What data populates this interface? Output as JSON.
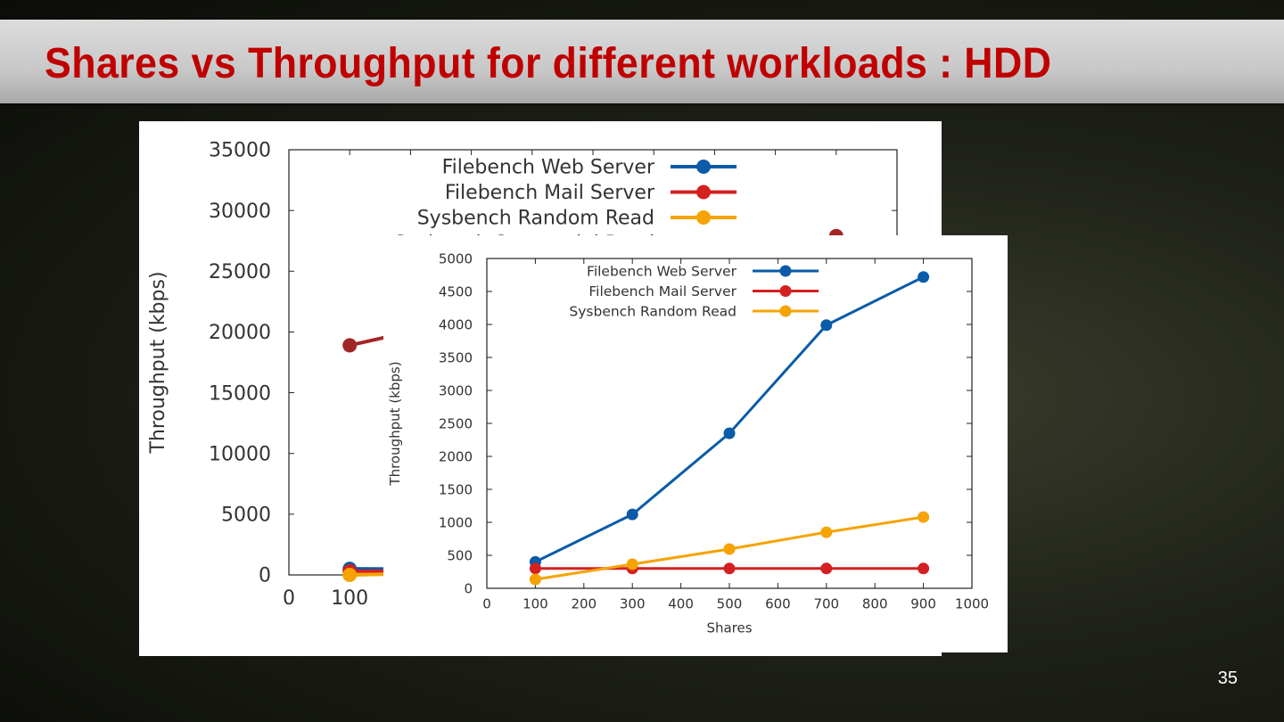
{
  "slide": {
    "title": "Shares vs Throughput for different workloads : HDD",
    "page_number": "35"
  },
  "chart_data": [
    {
      "type": "line",
      "ylabel": "Throughput (kbps)",
      "xlabel": "",
      "xlim": [
        0,
        1000
      ],
      "ylim": [
        0,
        35000
      ],
      "yticks": [
        "0",
        "5000",
        "10000",
        "15000",
        "20000",
        "25000",
        "30000",
        "35000"
      ],
      "xticks": [
        "0",
        "100"
      ],
      "legend_position": "top-center",
      "series": [
        {
          "name": "Filebench Web Server",
          "color": "#0a5ba8",
          "x": [
            100,
            300
          ],
          "y": [
            500,
            450
          ]
        },
        {
          "name": "Filebench Mail Server",
          "color": "#d42020",
          "x": [
            100,
            300
          ],
          "y": [
            300,
            300
          ]
        },
        {
          "name": "Sysbench Random Read",
          "color": "#f5a300",
          "x": [
            100,
            300
          ],
          "y": [
            0,
            200
          ]
        },
        {
          "name": "Sysbench Sequential Read",
          "color": "#a32626",
          "x": [
            100,
            900
          ],
          "y": [
            18900,
            27900
          ]
        }
      ]
    },
    {
      "type": "line",
      "ylabel": "Throughput (kbps)",
      "xlabel": "Shares",
      "xlim": [
        0,
        1000
      ],
      "ylim": [
        0,
        5000
      ],
      "yticks": [
        "0",
        "500",
        "1000",
        "1500",
        "2000",
        "2500",
        "3000",
        "3500",
        "4000",
        "4500",
        "5000"
      ],
      "xticks": [
        "0",
        "100",
        "200",
        "300",
        "400",
        "500",
        "600",
        "700",
        "800",
        "900",
        "1000"
      ],
      "legend_position": "top-left",
      "series": [
        {
          "name": "Filebench Web Server",
          "color": "#0a5ba8",
          "x": [
            100,
            300,
            500,
            700,
            900
          ],
          "y": [
            400,
            1120,
            2350,
            3990,
            4720
          ]
        },
        {
          "name": "Filebench Mail Server",
          "color": "#d42020",
          "x": [
            100,
            300,
            500,
            700,
            900
          ],
          "y": [
            300,
            300,
            300,
            300,
            300
          ]
        },
        {
          "name": "Sysbench Random Read",
          "color": "#f5a300",
          "x": [
            100,
            300,
            500,
            700,
            900
          ],
          "y": [
            135,
            365,
            595,
            850,
            1080
          ]
        }
      ]
    }
  ]
}
